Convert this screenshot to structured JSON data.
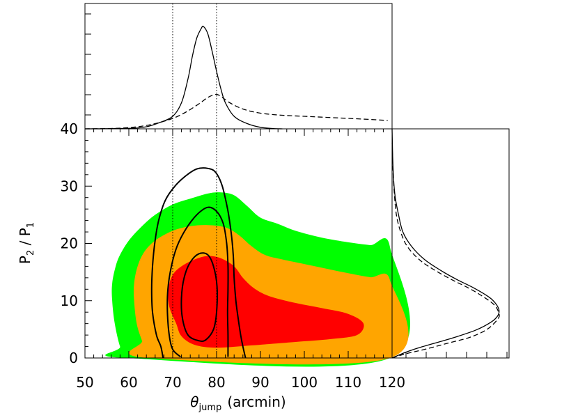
{
  "chart_data": [
    {
      "type": "contour",
      "panel": "main",
      "xlabel": {
        "symbol": "θ",
        "subscript": "jump",
        "unit": "(arcmin)"
      },
      "ylabel": {
        "base1": "P",
        "sub1": "2",
        "sep": " / ",
        "base2": "P",
        "sub2": "1"
      },
      "xlim": [
        50,
        120
      ],
      "ylim": [
        0,
        40
      ],
      "xticks": [
        "50",
        "60",
        "70",
        "80",
        "90",
        "100",
        "110",
        "120"
      ],
      "yticks": [
        "0",
        "10",
        "20",
        "30",
        "40"
      ],
      "vertical_lines": [
        70,
        80
      ],
      "filled_regions": [
        {
          "name": "outer",
          "color": "#00ff00",
          "points": [
            [
              59.5,
              0
            ],
            [
              58,
              2
            ],
            [
              56.8,
              6
            ],
            [
              56.2,
              10
            ],
            [
              56.2,
              13
            ],
            [
              57,
              16
            ],
            [
              58,
              18
            ],
            [
              60,
              20.5
            ],
            [
              63,
              23
            ],
            [
              66,
              25
            ],
            [
              70,
              26.8
            ],
            [
              74,
              27.8
            ],
            [
              78,
              28.7
            ],
            [
              81,
              28.9
            ],
            [
              84,
              28.4
            ],
            [
              87,
              26.5
            ],
            [
              90,
              24.5
            ],
            [
              94,
              23.4
            ],
            [
              98,
              22.2
            ],
            [
              104,
              21
            ],
            [
              110,
              20.2
            ],
            [
              115,
              19.7
            ],
            [
              119.5,
              19.4
            ],
            [
              119.5,
              0
            ]
          ]
        },
        {
          "name": "middle",
          "color": "#ffa500",
          "points": [
            [
              64.5,
              0
            ],
            [
              63,
              3
            ],
            [
              61.8,
              6
            ],
            [
              61.2,
              10
            ],
            [
              61.2,
              13
            ],
            [
              62,
              16
            ],
            [
              63.5,
              18.5
            ],
            [
              66,
              20.5
            ],
            [
              70,
              22.2
            ],
            [
              74,
              23
            ],
            [
              78,
              23.2
            ],
            [
              82,
              22.8
            ],
            [
              85,
              21.5
            ],
            [
              88,
              19.5
            ],
            [
              91,
              18
            ],
            [
              95,
              17.2
            ],
            [
              100,
              16.4
            ],
            [
              105,
              15.6
            ],
            [
              110,
              14.8
            ],
            [
              115,
              14.1
            ],
            [
              119.5,
              13.6
            ],
            [
              119.5,
              0
            ]
          ]
        },
        {
          "name": "inner",
          "color": "#ff0000",
          "points": [
            [
              70.8,
              6
            ],
            [
              69.2,
              9
            ],
            [
              69,
              12
            ],
            [
              70,
              14.5
            ],
            [
              72,
              16
            ],
            [
              75,
              17.2
            ],
            [
              78,
              17.8
            ],
            [
              81,
              17.4
            ],
            [
              84,
              16
            ],
            [
              86,
              14
            ],
            [
              88.5,
              12.2
            ],
            [
              92,
              10.8
            ],
            [
              98,
              9.6
            ],
            [
              104,
              8.7
            ],
            [
              110,
              7.7
            ],
            [
              113.5,
              6
            ],
            [
              112,
              4
            ],
            [
              106,
              3.3
            ],
            [
              98,
              2.8
            ],
            [
              88,
              2.2
            ],
            [
              80,
              1.8
            ],
            [
              75,
              2.3
            ],
            [
              72,
              3.8
            ]
          ]
        }
      ],
      "contours": [
        {
          "name": "outer-contour",
          "points": [
            [
              67.8,
              0
            ],
            [
              67.3,
              2
            ],
            [
              66.3,
              4
            ],
            [
              65.4,
              8
            ],
            [
              65.2,
              12
            ],
            [
              65.4,
              16
            ],
            [
              65.9,
              20
            ],
            [
              66.8,
              24
            ],
            [
              68.3,
              27.5
            ],
            [
              70.5,
              30
            ],
            [
              73,
              31.8
            ],
            [
              75.5,
              33
            ],
            [
              78,
              33.1
            ],
            [
              79.8,
              32.4
            ],
            [
              81.3,
              30
            ],
            [
              82.5,
              26
            ],
            [
              83.3,
              22
            ],
            [
              83.8,
              18
            ],
            [
              84,
              14
            ],
            [
              84.4,
              10
            ],
            [
              84.9,
              7
            ],
            [
              85.5,
              4
            ],
            [
              86,
              2
            ],
            [
              86.6,
              0
            ]
          ]
        },
        {
          "name": "middle-contour",
          "points": [
            [
              71.8,
              0.2
            ],
            [
              70,
              1.5
            ],
            [
              69.2,
              4
            ],
            [
              68.8,
              8
            ],
            [
              68.9,
              12
            ],
            [
              69.7,
              16
            ],
            [
              71,
              19.5
            ],
            [
              73,
              22.5
            ],
            [
              75.5,
              25
            ],
            [
              78,
              26.3
            ],
            [
              80,
              25.6
            ],
            [
              81.5,
              23.5
            ],
            [
              82.3,
              20
            ],
            [
              82.6,
              16
            ],
            [
              82.6,
              12
            ],
            [
              82.5,
              8
            ],
            [
              82.6,
              4
            ],
            [
              82.6,
              0.2
            ]
          ]
        },
        {
          "name": "inner-contour",
          "points": [
            [
              76,
              3
            ],
            [
              73.5,
              4
            ],
            [
              72.2,
              7
            ],
            [
              72,
              10.5
            ],
            [
              72.6,
              14
            ],
            [
              74,
              16.7
            ],
            [
              76,
              18.2
            ],
            [
              78,
              18
            ],
            [
              79.3,
              16
            ],
            [
              80.1,
              12.5
            ],
            [
              80,
              8
            ],
            [
              79.3,
              5
            ],
            [
              77.6,
              3.2
            ]
          ],
          "closed": true
        }
      ]
    },
    {
      "type": "line",
      "panel": "top-marginal",
      "xlim": [
        50,
        120
      ],
      "vertical_lines": [
        70,
        80
      ],
      "series": [
        {
          "style": "solid",
          "points": [
            [
              50,
              0
            ],
            [
              60,
              0.005
            ],
            [
              64,
              0.02
            ],
            [
              67,
              0.06
            ],
            [
              70,
              0.12
            ],
            [
              72,
              0.25
            ],
            [
              73.5,
              0.48
            ],
            [
              74.5,
              0.7
            ],
            [
              75.5,
              0.87
            ],
            [
              76.5,
              0.96
            ],
            [
              77,
              0.98
            ],
            [
              78,
              0.91
            ],
            [
              79,
              0.74
            ],
            [
              80,
              0.55
            ],
            [
              81,
              0.38
            ],
            [
              82,
              0.25
            ],
            [
              84,
              0.12
            ],
            [
              87,
              0.05
            ],
            [
              90,
              0.015
            ],
            [
              93,
              0.003
            ],
            [
              95,
              0
            ]
          ]
        },
        {
          "style": "dashed",
          "points": [
            [
              50,
              0
            ],
            [
              57,
              0.005
            ],
            [
              62,
              0.02
            ],
            [
              66,
              0.05
            ],
            [
              70,
              0.1
            ],
            [
              73,
              0.16
            ],
            [
              76,
              0.24
            ],
            [
              78,
              0.3
            ],
            [
              79.8,
              0.33
            ],
            [
              81,
              0.31
            ],
            [
              83,
              0.25
            ],
            [
              86,
              0.19
            ],
            [
              90,
              0.15
            ],
            [
              95,
              0.13
            ],
            [
              100,
              0.12
            ],
            [
              105,
              0.11
            ],
            [
              110,
              0.1
            ],
            [
              115,
              0.09
            ],
            [
              119,
              0.08
            ]
          ]
        }
      ]
    },
    {
      "type": "line",
      "panel": "right-marginal",
      "ylim": [
        0,
        40
      ],
      "series": [
        {
          "style": "solid",
          "points": [
            [
              0,
              0
            ],
            [
              0.1,
              0.8
            ],
            [
              0.2,
              1.5
            ],
            [
              0.38,
              2.5
            ],
            [
              0.58,
              3.6
            ],
            [
              0.78,
              4.9
            ],
            [
              0.92,
              6.3
            ],
            [
              0.98,
              7.4
            ],
            [
              0.99,
              8.4
            ],
            [
              0.96,
              9.5
            ],
            [
              0.9,
              10.6
            ],
            [
              0.76,
              12.2
            ],
            [
              0.6,
              13.7
            ],
            [
              0.45,
              15.3
            ],
            [
              0.3,
              17.2
            ],
            [
              0.18,
              19.5
            ],
            [
              0.1,
              22
            ],
            [
              0.06,
              25
            ],
            [
              0.03,
              28
            ],
            [
              0.015,
              31
            ],
            [
              0.006,
              35
            ],
            [
              0,
              40
            ]
          ]
        },
        {
          "style": "dashed",
          "points": [
            [
              0,
              0
            ],
            [
              0.12,
              0.7
            ],
            [
              0.3,
              1.5
            ],
            [
              0.52,
              2.6
            ],
            [
              0.72,
              3.6
            ],
            [
              0.88,
              5
            ],
            [
              0.98,
              6.8
            ],
            [
              0.99,
              7.8
            ],
            [
              0.95,
              9.2
            ],
            [
              0.86,
              10.5
            ],
            [
              0.72,
              12.1
            ],
            [
              0.55,
              13.7
            ],
            [
              0.38,
              15.5
            ],
            [
              0.25,
              17.2
            ],
            [
              0.14,
              19.5
            ],
            [
              0.08,
              22
            ],
            [
              0.04,
              25
            ],
            [
              0.02,
              29
            ],
            [
              0.008,
              33
            ],
            [
              0,
              38
            ]
          ]
        }
      ]
    }
  ]
}
